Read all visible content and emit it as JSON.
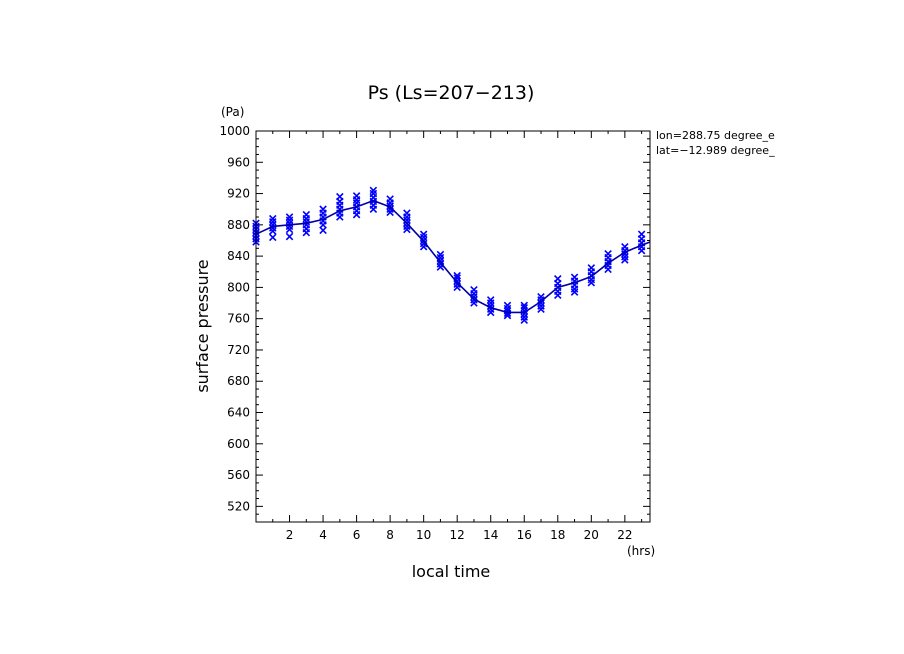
{
  "chart_data": {
    "type": "scatter",
    "title": "Ps (Ls=207−213)",
    "xlabel": "local time",
    "ylabel": "surface pressure",
    "xunit": "(hrs)",
    "yunit": "(Pa)",
    "annotations": [
      "lon=288.75 degree_e",
      "lat=−12.989 degree_"
    ],
    "xlim": [
      0,
      23.5
    ],
    "ylim": [
      500,
      1000
    ],
    "xticks": [
      2,
      4,
      6,
      8,
      10,
      12,
      14,
      16,
      18,
      20,
      22
    ],
    "yticks": [
      520,
      560,
      600,
      640,
      680,
      720,
      760,
      800,
      840,
      880,
      920,
      960,
      1000
    ],
    "grid": false,
    "colors": {
      "series": "#0000ff",
      "mean_line": "#0000aa",
      "axes": "#000000"
    },
    "series": [
      {
        "marker": "x",
        "points": [
          [
            0.0,
            858
          ],
          [
            0.0,
            862
          ],
          [
            0.0,
            866
          ],
          [
            0.0,
            870
          ],
          [
            0.0,
            874
          ],
          [
            0.0,
            878
          ],
          [
            0.0,
            882
          ],
          [
            1.0,
            864
          ],
          [
            1.0,
            872
          ],
          [
            1.0,
            876
          ],
          [
            1.0,
            880
          ],
          [
            1.0,
            884
          ],
          [
            1.0,
            888
          ],
          [
            2.0,
            865
          ],
          [
            2.0,
            874
          ],
          [
            2.0,
            878
          ],
          [
            2.0,
            882
          ],
          [
            2.0,
            886
          ],
          [
            2.0,
            890
          ],
          [
            3.0,
            870
          ],
          [
            3.0,
            875
          ],
          [
            3.0,
            880
          ],
          [
            3.0,
            884
          ],
          [
            3.0,
            888
          ],
          [
            3.0,
            893
          ],
          [
            4.0,
            873
          ],
          [
            4.0,
            880
          ],
          [
            4.0,
            885
          ],
          [
            4.0,
            890
          ],
          [
            4.0,
            895
          ],
          [
            4.0,
            900
          ],
          [
            5.0,
            890
          ],
          [
            5.0,
            895
          ],
          [
            5.0,
            900
          ],
          [
            5.0,
            905
          ],
          [
            5.0,
            910
          ],
          [
            5.0,
            916
          ],
          [
            6.0,
            893
          ],
          [
            6.0,
            898
          ],
          [
            6.0,
            903
          ],
          [
            6.0,
            908
          ],
          [
            6.0,
            912
          ],
          [
            6.0,
            917
          ],
          [
            7.0,
            900
          ],
          [
            7.0,
            905
          ],
          [
            7.0,
            910
          ],
          [
            7.0,
            915
          ],
          [
            7.0,
            920
          ],
          [
            7.0,
            924
          ],
          [
            8.0,
            896
          ],
          [
            8.0,
            900
          ],
          [
            8.0,
            904
          ],
          [
            8.0,
            908
          ],
          [
            8.0,
            913
          ],
          [
            9.0,
            874
          ],
          [
            9.0,
            878
          ],
          [
            9.0,
            882
          ],
          [
            9.0,
            886
          ],
          [
            9.0,
            890
          ],
          [
            9.0,
            895
          ],
          [
            10.0,
            852
          ],
          [
            10.0,
            856
          ],
          [
            10.0,
            860
          ],
          [
            10.0,
            864
          ],
          [
            10.0,
            868
          ],
          [
            11.0,
            826
          ],
          [
            11.0,
            830
          ],
          [
            11.0,
            834
          ],
          [
            11.0,
            838
          ],
          [
            11.0,
            842
          ],
          [
            12.0,
            800
          ],
          [
            12.0,
            804
          ],
          [
            12.0,
            808
          ],
          [
            12.0,
            812
          ],
          [
            12.0,
            815
          ],
          [
            13.0,
            780
          ],
          [
            13.0,
            784
          ],
          [
            13.0,
            788
          ],
          [
            13.0,
            792
          ],
          [
            13.0,
            797
          ],
          [
            14.0,
            768
          ],
          [
            14.0,
            772
          ],
          [
            14.0,
            776
          ],
          [
            14.0,
            780
          ],
          [
            14.0,
            784
          ],
          [
            15.0,
            764
          ],
          [
            15.0,
            767
          ],
          [
            15.0,
            770
          ],
          [
            15.0,
            773
          ],
          [
            15.0,
            777
          ],
          [
            16.0,
            758
          ],
          [
            16.0,
            762
          ],
          [
            16.0,
            766
          ],
          [
            16.0,
            770
          ],
          [
            16.0,
            774
          ],
          [
            16.0,
            777
          ],
          [
            17.0,
            772
          ],
          [
            17.0,
            776
          ],
          [
            17.0,
            780
          ],
          [
            17.0,
            784
          ],
          [
            17.0,
            788
          ],
          [
            18.0,
            790
          ],
          [
            18.0,
            795
          ],
          [
            18.0,
            800
          ],
          [
            18.0,
            805
          ],
          [
            18.0,
            811
          ],
          [
            19.0,
            794
          ],
          [
            19.0,
            798
          ],
          [
            19.0,
            803
          ],
          [
            19.0,
            808
          ],
          [
            19.0,
            813
          ],
          [
            20.0,
            806
          ],
          [
            20.0,
            810
          ],
          [
            20.0,
            815
          ],
          [
            20.0,
            820
          ],
          [
            20.0,
            825
          ],
          [
            21.0,
            823
          ],
          [
            21.0,
            828
          ],
          [
            21.0,
            833
          ],
          [
            21.0,
            838
          ],
          [
            21.0,
            843
          ],
          [
            22.0,
            835
          ],
          [
            22.0,
            839
          ],
          [
            22.0,
            843
          ],
          [
            22.0,
            847
          ],
          [
            22.0,
            852
          ],
          [
            23.0,
            847
          ],
          [
            23.0,
            852
          ],
          [
            23.0,
            857
          ],
          [
            23.0,
            862
          ],
          [
            23.0,
            868
          ]
        ]
      },
      {
        "type": "line",
        "x": [
          0,
          1,
          2,
          3,
          4,
          5,
          6,
          7,
          8,
          9,
          10,
          11,
          12,
          13,
          14,
          15,
          16,
          17,
          18,
          19,
          20,
          21,
          22,
          23,
          23.5
        ],
        "values": [
          868,
          878,
          880,
          882,
          887,
          898,
          903,
          911,
          903,
          882,
          859,
          832,
          806,
          785,
          774,
          768,
          768,
          782,
          800,
          806,
          814,
          831,
          845,
          854,
          858
        ]
      }
    ]
  }
}
